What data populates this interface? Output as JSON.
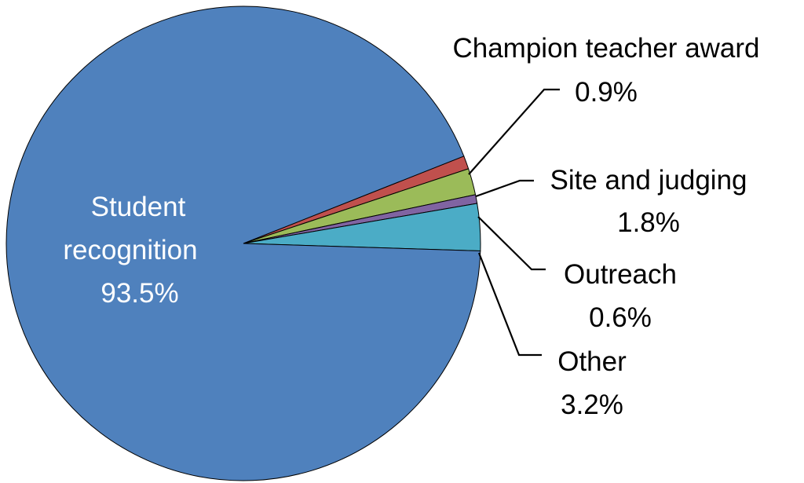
{
  "chart_data": {
    "type": "pie",
    "title": "",
    "start_angle_deg": -21.6,
    "direction": "clockwise",
    "slices": [
      {
        "name": "Champion teacher award",
        "value": 0.9,
        "label": "0.9%",
        "color": "#c0504d"
      },
      {
        "name": "Site and judging",
        "value": 1.8,
        "label": "1.8%",
        "color": "#9bbb59"
      },
      {
        "name": "Outreach",
        "value": 0.6,
        "label": "0.6%",
        "color": "#8064a2"
      },
      {
        "name": "Other",
        "value": 3.2,
        "label": "3.2%",
        "color": "#4bacc6"
      },
      {
        "name": "Student recognition",
        "name_lines": [
          "Student",
          "recognition"
        ],
        "value": 93.5,
        "label": "93.5%",
        "color": "#4f81bd"
      }
    ]
  }
}
